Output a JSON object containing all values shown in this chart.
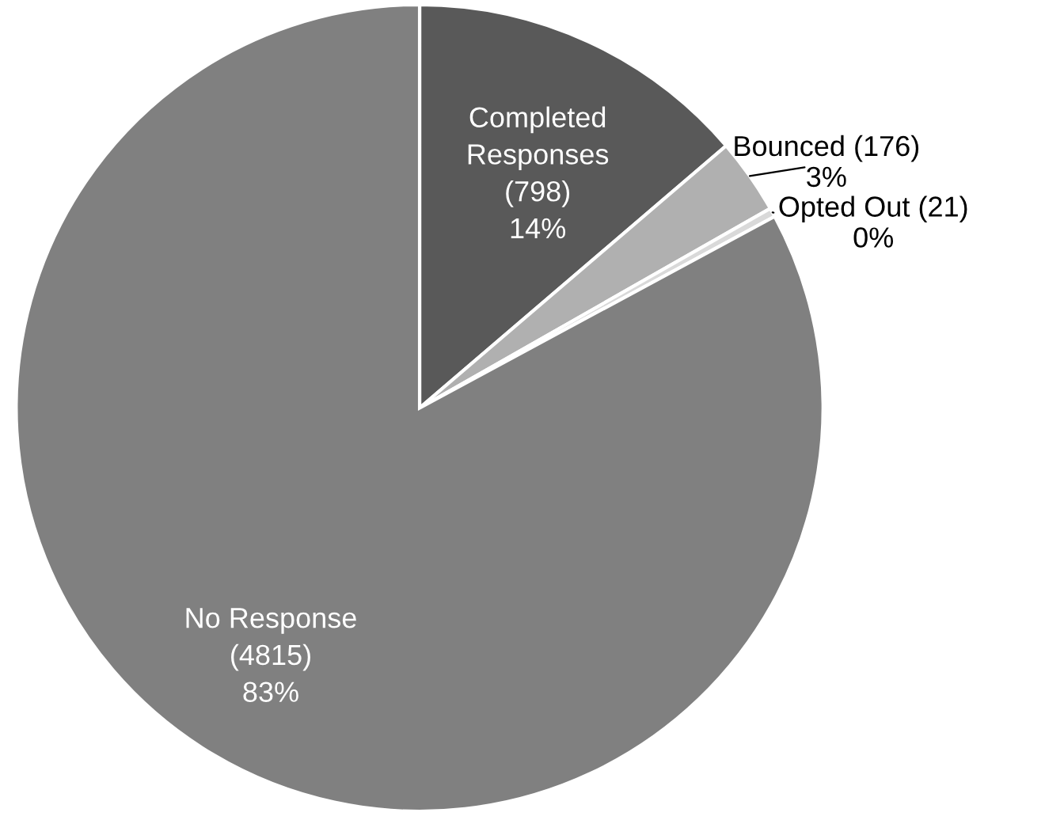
{
  "chart_data": {
    "type": "pie",
    "categories": [
      "Completed\nResponses",
      "Bounced",
      "Opted Out",
      "No Response"
    ],
    "values": [
      798,
      176,
      21,
      4815
    ],
    "value_labels": [
      "(798)\n14%",
      "(176)\n3%",
      "(21)\n0%",
      "(4815)\n83%"
    ],
    "colors": [
      "#595959",
      "#b0b0b0",
      "#d9d9d9",
      "#808080"
    ],
    "legend": false
  }
}
